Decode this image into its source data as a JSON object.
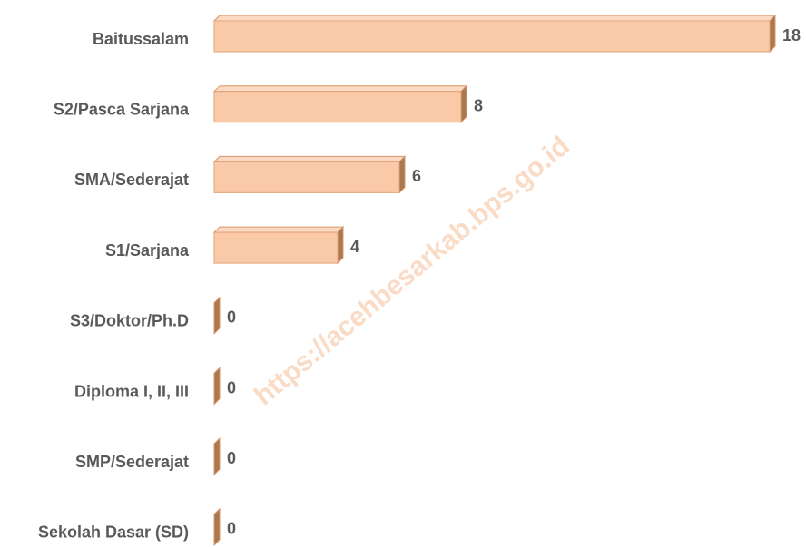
{
  "chart_data": {
    "type": "bar",
    "orientation": "horizontal",
    "categories": [
      "Baitussalam",
      "S2/Pasca Sarjana",
      "SMA/Sederajat",
      "S1/Sarjana",
      "S3/Doktor/Ph.D",
      "Diploma I, II, III",
      "SMP/Sederajat",
      "Sekolah Dasar (SD)"
    ],
    "values": [
      18,
      8,
      6,
      4,
      0,
      0,
      0,
      0
    ],
    "color": "#f9c9a8",
    "xlim": [
      0,
      18
    ],
    "watermark": "https://acehbesarkab.bps.go.id"
  }
}
